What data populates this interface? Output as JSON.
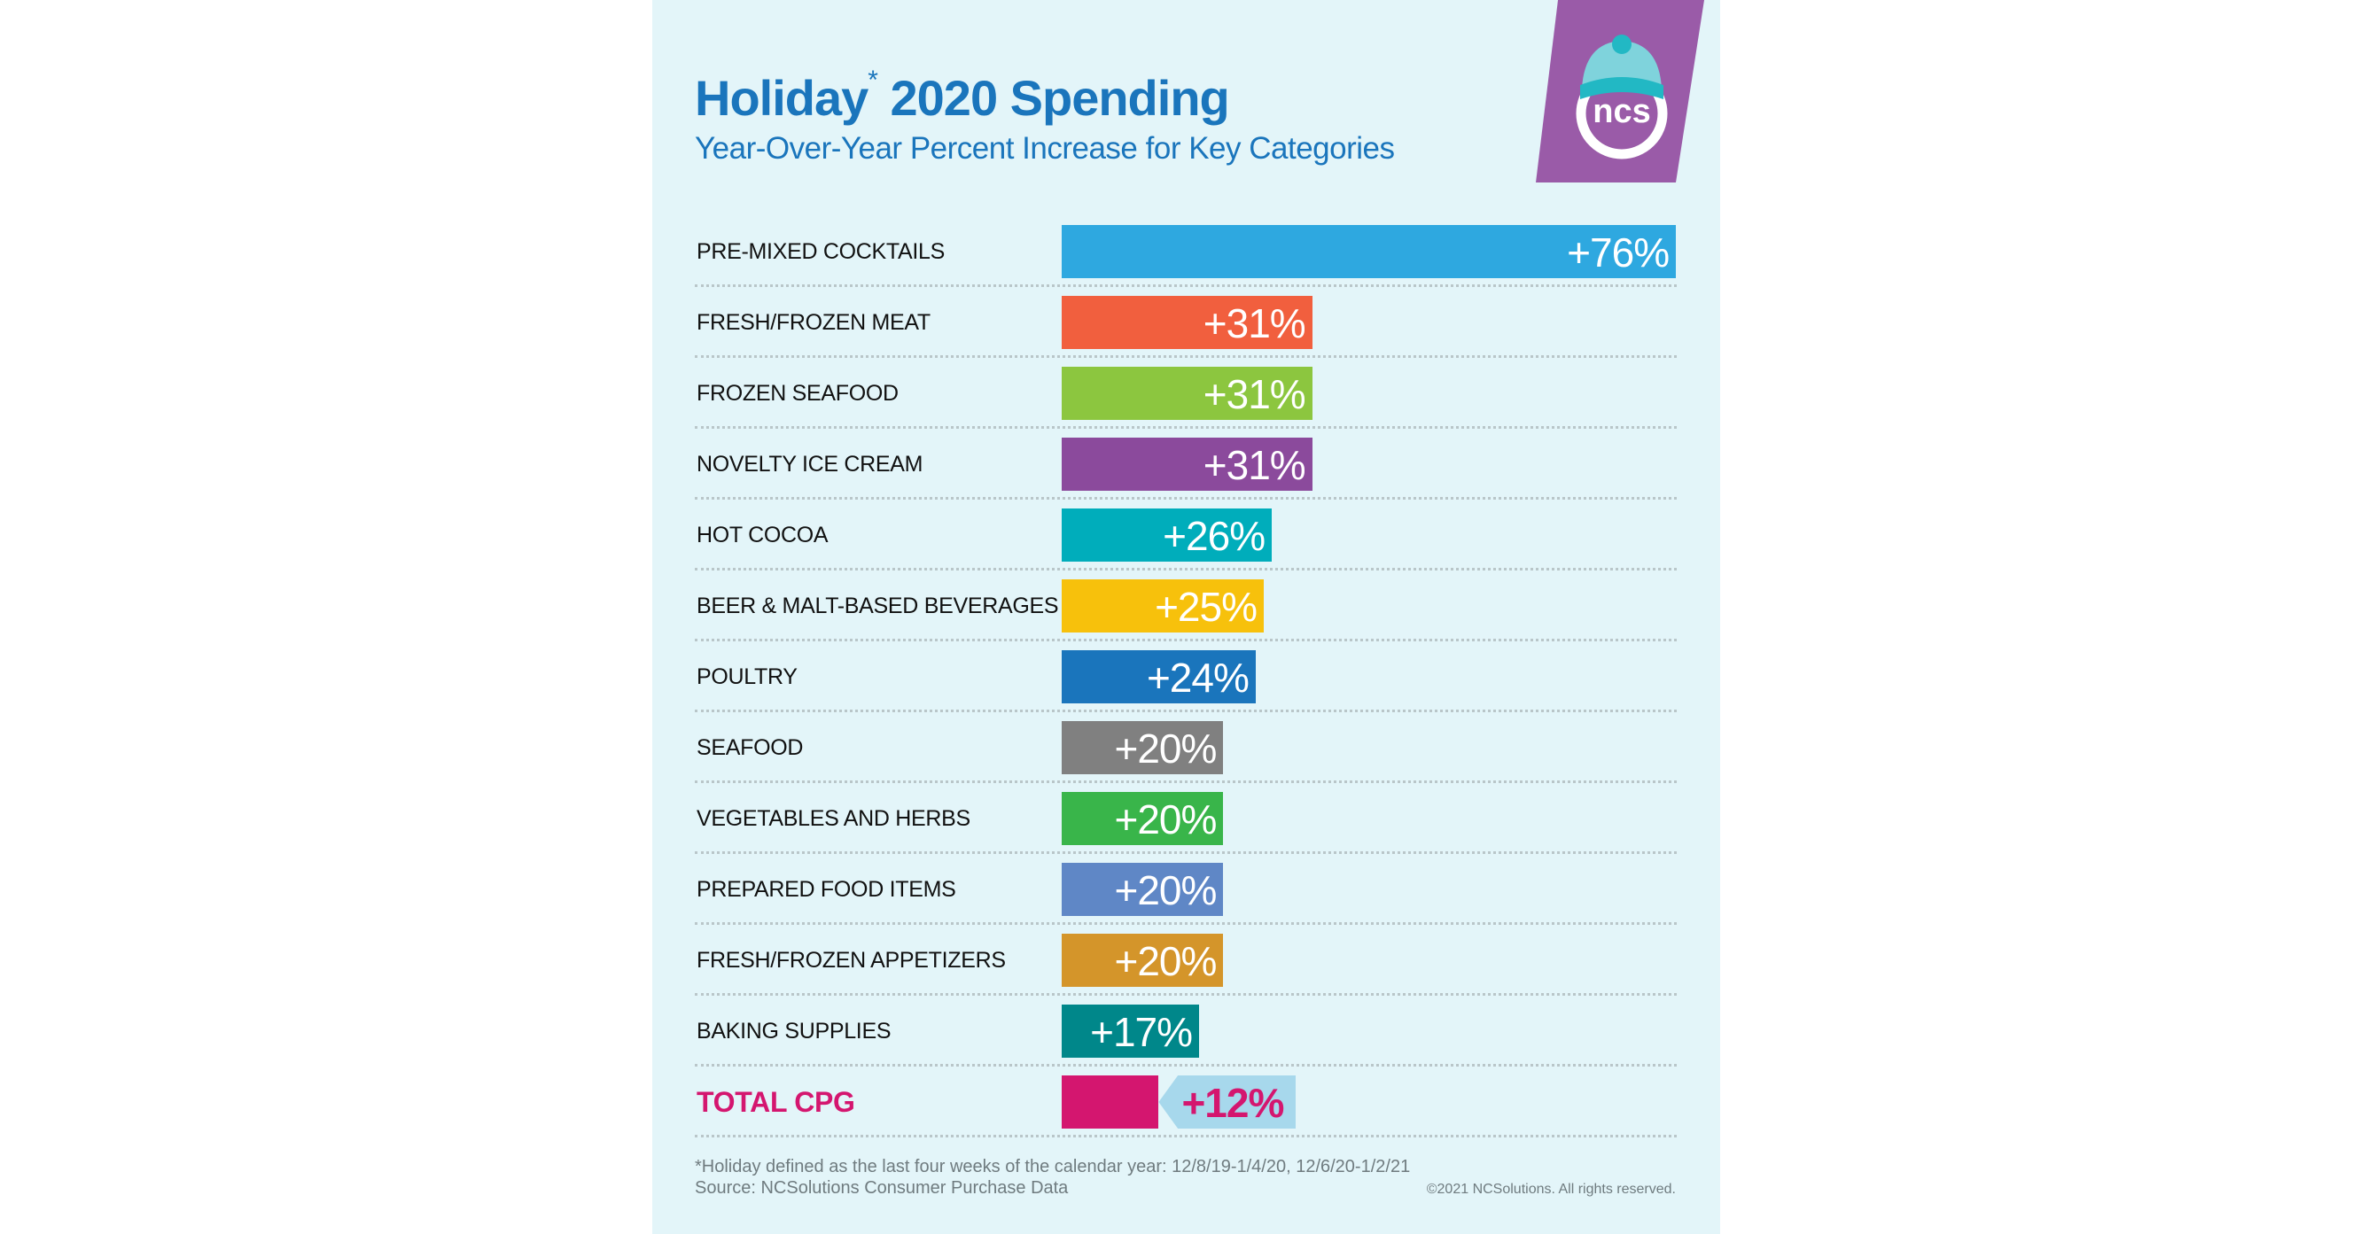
{
  "chart_data": {
    "type": "bar",
    "orientation": "horizontal",
    "title": "Holiday* 2020 Spending",
    "title_main": "Holiday",
    "title_mark": "*",
    "title_rest": " 2020 Spending",
    "subtitle": "Year-Over-Year Percent Increase for Key Categories",
    "value_format": "+{v}%",
    "unit": "%",
    "grid": false,
    "categories": [
      "PRE-MIXED COCKTAILS",
      "FRESH/FROZEN MEAT",
      "FROZEN SEAFOOD",
      "NOVELTY ICE CREAM",
      "HOT COCOA",
      "BEER & MALT-BASED BEVERAGES",
      "POULTRY",
      "SEAFOOD",
      "VEGETABLES AND HERBS",
      "PREPARED FOOD ITEMS",
      "FRESH/FROZEN APPETIZERS",
      "BAKING SUPPLIES",
      "TOTAL CPG"
    ],
    "values": [
      76,
      31,
      31,
      31,
      26,
      25,
      24,
      20,
      20,
      20,
      20,
      17,
      12
    ],
    "labels": [
      "+76%",
      "+31%",
      "+31%",
      "+31%",
      "+26%",
      "+25%",
      "+24%",
      "+20%",
      "+20%",
      "+20%",
      "+20%",
      "+17%",
      "+12%"
    ],
    "colors": [
      "#2ea8e0",
      "#f15f3e",
      "#8cc63f",
      "#8b4a9c",
      "#00adbb",
      "#f7c10c",
      "#1a75bc",
      "#808080",
      "#39b54a",
      "#5f87c6",
      "#d4952a",
      "#00878a",
      "#d4166f"
    ],
    "highlight_callout_color": "#a7d8ec"
  },
  "logo": {
    "text": "ncs",
    "color": "#9a5ba8"
  },
  "footer": {
    "note": "*Holiday defined as the last four weeks of the calendar year: 12/8/19-1/4/20, 12/6/20-1/2/21",
    "source": "Source: NCSolutions Consumer Purchase Data",
    "copyright": "©2021 NCSolutions. All rights reserved."
  },
  "colors": {
    "background": "#e3f5f9",
    "title": "#1a75bc"
  }
}
